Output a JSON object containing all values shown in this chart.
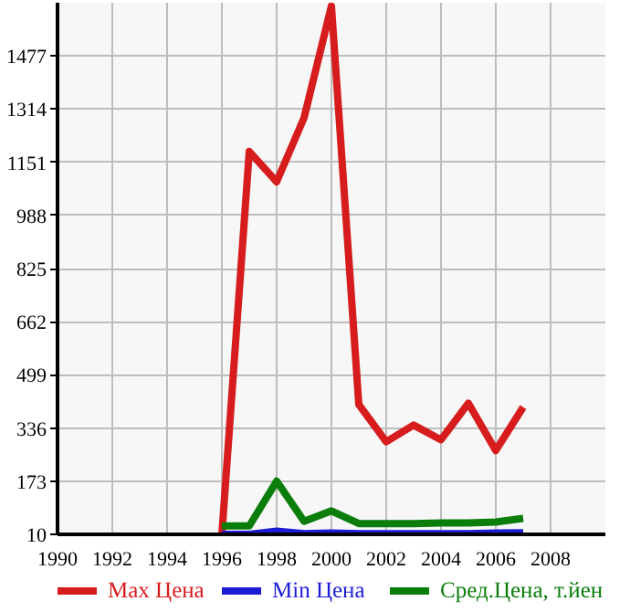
{
  "chart_data": {
    "type": "line",
    "x": [
      1996,
      1997,
      1998,
      1999,
      2000,
      2001,
      2002,
      2003,
      2004,
      2005,
      2006,
      2007
    ],
    "series": [
      {
        "name": "Max Цена",
        "color": "#d61c1c",
        "values": [
          10,
          1184,
          1091,
          1287,
          1630,
          408,
          294,
          345,
          300,
          412,
          267,
          400
        ]
      },
      {
        "name": "Min Цена",
        "color": "#1c1cd6",
        "values": [
          10,
          10,
          20,
          12,
          14,
          12,
          12,
          12,
          12,
          12,
          14,
          15
        ]
      },
      {
        "name": "Сред.Цена, т.йен",
        "color": "#0a7d0a",
        "values": [
          36,
          36,
          173,
          50,
          82,
          43,
          43,
          43,
          45,
          45,
          48,
          59
        ]
      }
    ],
    "xlim": [
      1990,
      2010
    ],
    "xticks": [
      1990,
      1992,
      1994,
      1996,
      1998,
      2000,
      2002,
      2004,
      2006,
      2008
    ],
    "ylim": [
      10,
      1640
    ],
    "yticks": [
      10,
      173,
      336,
      499,
      662,
      825,
      988,
      1151,
      1314,
      1477
    ],
    "grid": true,
    "legend": "bottom",
    "marker": "none",
    "line_style": "solid"
  }
}
